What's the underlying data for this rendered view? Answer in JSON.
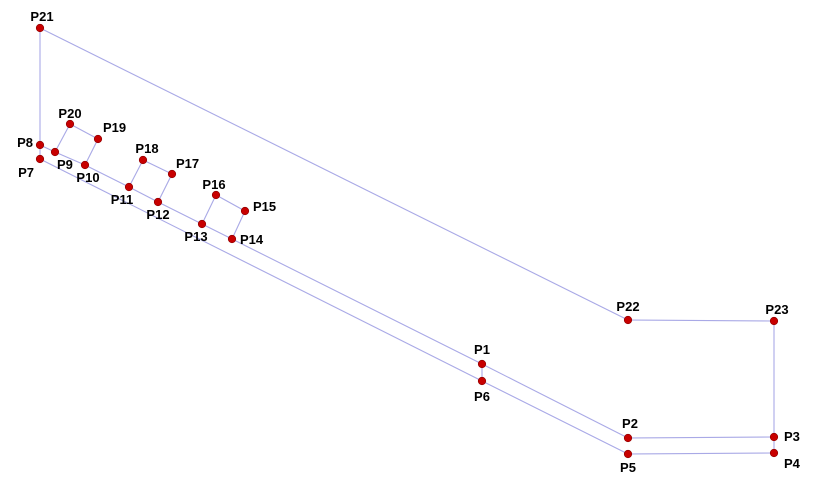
{
  "colors": {
    "edge": "#a9a9e6",
    "point": "#c80000",
    "label": "#000000",
    "background": "#ffffff"
  },
  "points": [
    {
      "id": "P1",
      "label": "P1"
    },
    {
      "id": "P2",
      "label": "P2"
    },
    {
      "id": "P3",
      "label": "P3"
    },
    {
      "id": "P4",
      "label": "P4"
    },
    {
      "id": "P5",
      "label": "P5"
    },
    {
      "id": "P6",
      "label": "P6"
    },
    {
      "id": "P7",
      "label": "P7"
    },
    {
      "id": "P8",
      "label": "P8"
    },
    {
      "id": "P9",
      "label": "P9"
    },
    {
      "id": "P10",
      "label": "P10"
    },
    {
      "id": "P11",
      "label": "P11"
    },
    {
      "id": "P12",
      "label": "P12"
    },
    {
      "id": "P13",
      "label": "P13"
    },
    {
      "id": "P14",
      "label": "P14"
    },
    {
      "id": "P15",
      "label": "P15"
    },
    {
      "id": "P16",
      "label": "P16"
    },
    {
      "id": "P17",
      "label": "P17"
    },
    {
      "id": "P18",
      "label": "P18"
    },
    {
      "id": "P19",
      "label": "P19"
    },
    {
      "id": "P20",
      "label": "P20"
    },
    {
      "id": "P21",
      "label": "P21"
    },
    {
      "id": "P22",
      "label": "P22"
    },
    {
      "id": "P23",
      "label": "P23"
    }
  ],
  "edges": [
    [
      "P1",
      "P2"
    ],
    [
      "P2",
      "P3"
    ],
    [
      "P3",
      "P4"
    ],
    [
      "P4",
      "P5"
    ],
    [
      "P5",
      "P6"
    ],
    [
      "P6",
      "P7"
    ],
    [
      "P7",
      "P8"
    ],
    [
      "P8",
      "P9"
    ],
    [
      "P9",
      "P10"
    ],
    [
      "P10",
      "P11"
    ],
    [
      "P11",
      "P12"
    ],
    [
      "P12",
      "P13"
    ],
    [
      "P13",
      "P14"
    ],
    [
      "P14",
      "P1"
    ],
    [
      "P1",
      "P6"
    ],
    [
      "P9",
      "P20"
    ],
    [
      "P20",
      "P19"
    ],
    [
      "P19",
      "P10"
    ],
    [
      "P11",
      "P18"
    ],
    [
      "P18",
      "P17"
    ],
    [
      "P17",
      "P12"
    ],
    [
      "P13",
      "P16"
    ],
    [
      "P16",
      "P15"
    ],
    [
      "P15",
      "P14"
    ],
    [
      "P8",
      "P21"
    ],
    [
      "P21",
      "P22"
    ],
    [
      "P22",
      "P23"
    ],
    [
      "P23",
      "P3"
    ]
  ]
}
